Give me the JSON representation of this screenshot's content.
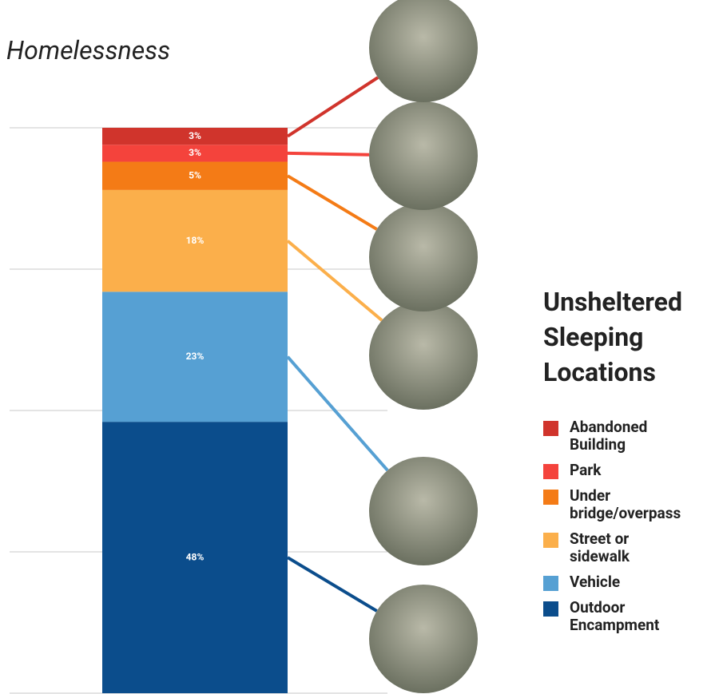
{
  "chart_data": {
    "type": "bar",
    "stacked": true,
    "title": "Homelessness",
    "legend_title": "Unsheltered Sleeping Locations",
    "ylim": [
      0,
      100
    ],
    "yticks": [
      0,
      25,
      50,
      75,
      100
    ],
    "grid": true,
    "series": [
      {
        "name": "Abandoned Building",
        "color": "#d0342c",
        "values": [
          3
        ],
        "value_labels": [
          "3%"
        ]
      },
      {
        "name": "Park",
        "color": "#f4433c",
        "values": [
          3
        ],
        "value_labels": [
          "3%"
        ]
      },
      {
        "name": "Under bridge/overpass",
        "color": "#f47b16",
        "values": [
          5
        ],
        "value_labels": [
          "5%"
        ]
      },
      {
        "name": "Street or sidewalk",
        "color": "#fbaf4b",
        "values": [
          18
        ],
        "value_labels": [
          "18%"
        ]
      },
      {
        "name": "Vehicle",
        "color": "#56a0d3",
        "values": [
          23
        ],
        "value_labels": [
          "23%"
        ]
      },
      {
        "name": "Outdoor Encampment",
        "color": "#0b4d8c",
        "values": [
          48
        ],
        "value_labels": [
          "48%"
        ]
      }
    ]
  }
}
